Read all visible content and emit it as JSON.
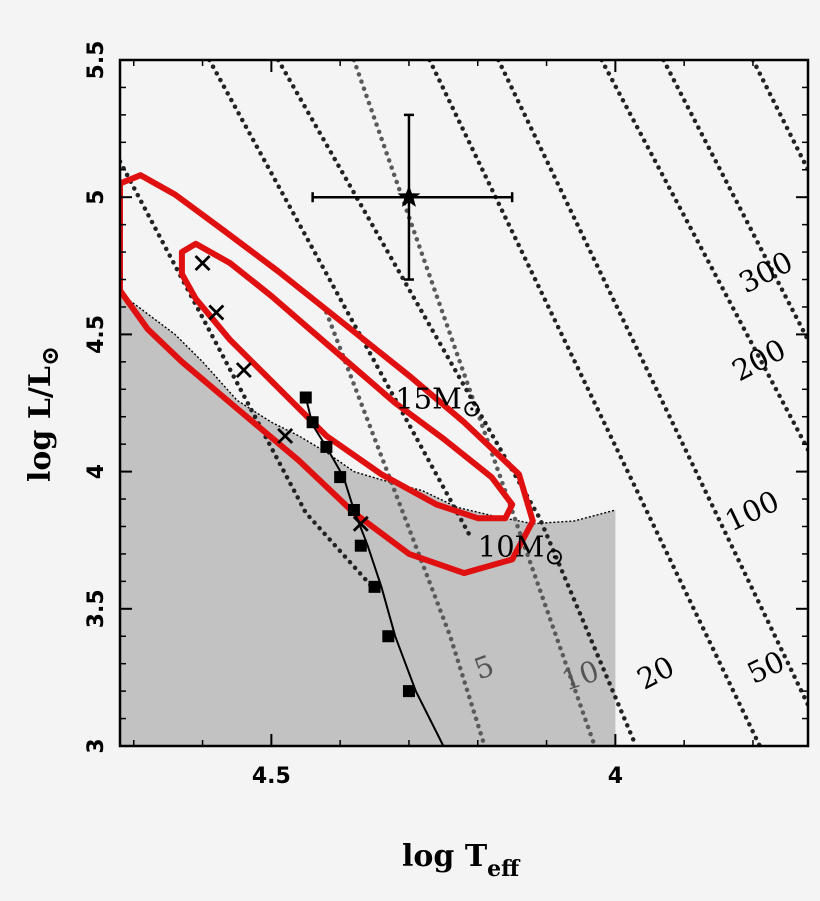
{
  "chart_data": {
    "type": "scatter",
    "xlabel": "log T",
    "xlabel_sub": "eff",
    "ylabel": "log L/L",
    "ylabel_sun": "⊙",
    "xlim": [
      4.72,
      3.72
    ],
    "ylim": [
      3.0,
      5.5
    ],
    "x_ticks": [
      {
        "v": 4.5,
        "label": "4.5"
      },
      {
        "v": 4.0,
        "label": "4"
      }
    ],
    "y_ticks": [
      {
        "v": 3.0,
        "label": "3"
      },
      {
        "v": 3.5,
        "label": "3.5"
      },
      {
        "v": 4.0,
        "label": "4"
      },
      {
        "v": 4.5,
        "label": "4.5"
      },
      {
        "v": 5.0,
        "label": "5"
      },
      {
        "v": 5.5,
        "label": "5.5"
      }
    ],
    "star": {
      "x": 4.3,
      "y": 5.0,
      "x_err": [
        4.44,
        4.15
      ],
      "y_err": [
        4.7,
        5.3
      ]
    },
    "shaded_region": [
      [
        4.72,
        4.65
      ],
      [
        4.64,
        4.5
      ],
      [
        4.6,
        4.4
      ],
      [
        4.55,
        4.26
      ],
      [
        4.5,
        4.18
      ],
      [
        4.46,
        4.13
      ],
      [
        4.42,
        4.07
      ],
      [
        4.38,
        4.0
      ],
      [
        4.34,
        3.97
      ],
      [
        4.28,
        3.93
      ],
      [
        4.23,
        3.87
      ],
      [
        4.18,
        3.84
      ],
      [
        4.12,
        3.81
      ],
      [
        4.06,
        3.82
      ],
      [
        4.0,
        3.86
      ],
      [
        4.0,
        3.0
      ],
      [
        4.72,
        3.0
      ]
    ],
    "mass_track": {
      "line": [
        [
          4.45,
          4.27
        ],
        [
          4.44,
          4.17
        ],
        [
          4.42,
          4.09
        ],
        [
          4.395,
          3.98
        ],
        [
          4.38,
          3.86
        ],
        [
          4.36,
          3.73
        ],
        [
          4.34,
          3.58
        ],
        [
          4.32,
          3.4
        ],
        [
          4.29,
          3.2
        ],
        [
          4.25,
          3.0
        ]
      ],
      "squares": [
        [
          4.45,
          4.27
        ],
        [
          4.44,
          4.18
        ],
        [
          4.42,
          4.09
        ],
        [
          4.4,
          3.98
        ],
        [
          4.38,
          3.86
        ],
        [
          4.37,
          3.73
        ],
        [
          4.35,
          3.58
        ],
        [
          4.33,
          3.4
        ],
        [
          4.3,
          3.2
        ]
      ],
      "crosses": [
        [
          4.6,
          4.76
        ],
        [
          4.58,
          4.58
        ],
        [
          4.54,
          4.37
        ],
        [
          4.48,
          4.13
        ],
        [
          4.37,
          3.81
        ]
      ]
    },
    "contours": [
      {
        "name": "inner",
        "points": [
          [
            4.63,
            4.8
          ],
          [
            4.61,
            4.83
          ],
          [
            4.56,
            4.76
          ],
          [
            4.5,
            4.64
          ],
          [
            4.44,
            4.51
          ],
          [
            4.38,
            4.38
          ],
          [
            4.32,
            4.25
          ],
          [
            4.25,
            4.12
          ],
          [
            4.18,
            3.98
          ],
          [
            4.15,
            3.88
          ],
          [
            4.16,
            3.83
          ],
          [
            4.2,
            3.83
          ],
          [
            4.26,
            3.88
          ],
          [
            4.34,
            3.99
          ],
          [
            4.42,
            4.13
          ],
          [
            4.5,
            4.33
          ],
          [
            4.56,
            4.48
          ],
          [
            4.61,
            4.63
          ],
          [
            4.63,
            4.72
          ]
        ]
      },
      {
        "name": "outer",
        "points": [
          [
            4.72,
            5.05
          ],
          [
            4.69,
            5.08
          ],
          [
            4.64,
            5.01
          ],
          [
            4.57,
            4.88
          ],
          [
            4.49,
            4.73
          ],
          [
            4.4,
            4.55
          ],
          [
            4.3,
            4.35
          ],
          [
            4.22,
            4.18
          ],
          [
            4.14,
            3.99
          ],
          [
            4.12,
            3.82
          ],
          [
            4.15,
            3.68
          ],
          [
            4.22,
            3.63
          ],
          [
            4.3,
            3.7
          ],
          [
            4.38,
            3.85
          ],
          [
            4.46,
            4.04
          ],
          [
            4.55,
            4.23
          ],
          [
            4.63,
            4.4
          ],
          [
            4.68,
            4.52
          ],
          [
            4.72,
            4.66
          ]
        ]
      }
    ],
    "isochrones": [
      {
        "label": "5",
        "shade": "#5a5a5a",
        "points": [
          [
            4.42,
            4.58
          ],
          [
            4.24,
            3.4
          ],
          [
            4.19,
            3.0
          ]
        ],
        "label_pos": [
          4.19,
          3.28
        ],
        "label_color": "#555555"
      },
      {
        "label": "10",
        "shade": "#5a5a5a",
        "points": [
          [
            4.38,
            5.5
          ],
          [
            4.03,
            3.0
          ]
        ],
        "label_pos": [
          4.05,
          3.25
        ],
        "label_color": "#555555"
      },
      {
        "label": "20",
        "shade": "#222222",
        "points": [
          [
            4.49,
            5.5
          ],
          [
            4.11,
            3.83
          ],
          [
            3.97,
            3.0
          ]
        ],
        "label_pos": [
          3.94,
          3.26
        ],
        "label_color": "#000000"
      },
      {
        "label": "50",
        "shade": "#222222",
        "points": [
          [
            4.27,
            5.5
          ],
          [
            3.79,
            3.0
          ]
        ],
        "label_pos": [
          3.78,
          3.28
        ],
        "label_color": "#000000"
      },
      {
        "label": "100",
        "shade": "#222222",
        "points": [
          [
            4.17,
            5.5
          ],
          [
            3.72,
            3.15
          ]
        ],
        "label_pos": [
          3.8,
          3.85
        ],
        "label_color": "#000000"
      },
      {
        "label": "200",
        "shade": "#222222",
        "points": [
          [
            4.02,
            5.5
          ],
          [
            3.72,
            4.08
          ]
        ],
        "label_pos": [
          3.79,
          4.4
        ],
        "label_color": "#000000"
      },
      {
        "label": "300",
        "shade": "#222222",
        "points": [
          [
            3.93,
            5.5
          ],
          [
            3.72,
            4.48
          ]
        ],
        "label_pos": [
          3.78,
          4.72
        ],
        "label_color": "#000000"
      },
      {
        "label": "",
        "shade": "#222222",
        "points": [
          [
            4.72,
            5.13
          ],
          [
            4.45,
            3.85
          ],
          [
            4.35,
            3.57
          ]
        ],
        "label_pos": null,
        "label_color": "#000000"
      },
      {
        "label": "",
        "shade": "#222222",
        "points": [
          [
            4.59,
            5.5
          ],
          [
            4.21,
            3.76
          ]
        ],
        "label_pos": null,
        "label_color": "#000000"
      },
      {
        "label": "",
        "shade": "#222222",
        "points": [
          [
            3.8,
            5.5
          ],
          [
            3.72,
            5.1
          ]
        ],
        "label_pos": null,
        "label_color": "#000000"
      }
    ],
    "annotations": [
      {
        "text": "15M",
        "sun": "⊙",
        "x": 4.32,
        "y": 4.23
      },
      {
        "text": "10M",
        "sun": "⊙",
        "x": 4.2,
        "y": 3.69
      }
    ]
  }
}
